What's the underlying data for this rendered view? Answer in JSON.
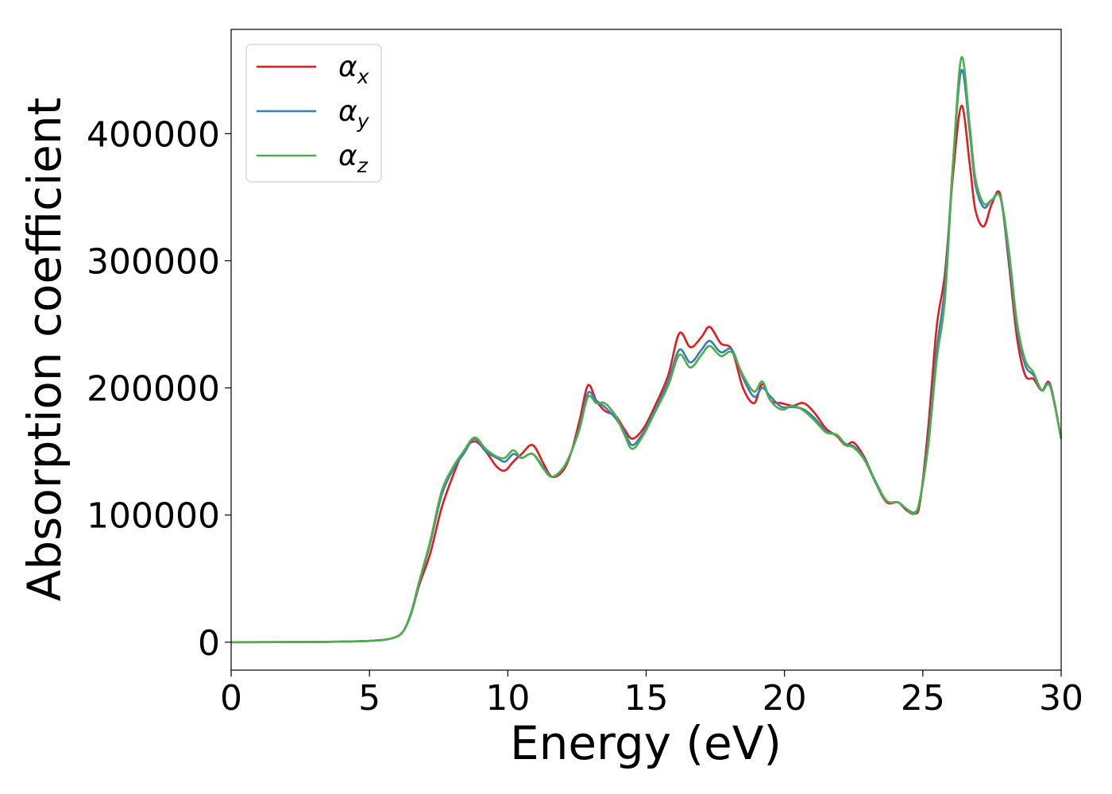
{
  "chart_data": {
    "type": "line",
    "title": "",
    "xlabel": "Energy (eV)",
    "ylabel": "Absorption coefficient",
    "xlim": [
      0,
      30
    ],
    "ylim": [
      -22000,
      482000
    ],
    "xticks": [
      0,
      5,
      10,
      15,
      20,
      25,
      30
    ],
    "yticks": [
      0,
      100000,
      200000,
      300000,
      400000
    ],
    "grid": false,
    "legend": {
      "position": "top-left",
      "entries": [
        {
          "symbol": "α",
          "subscript": "x",
          "color": "#e41a1c"
        },
        {
          "symbol": "α",
          "subscript": "y",
          "color": "#377eb8"
        },
        {
          "symbol": "α",
          "subscript": "z",
          "color": "#4daf4a"
        }
      ]
    },
    "series": [
      {
        "name": "αx",
        "color": "#e41a1c",
        "x": [
          0,
          3,
          5,
          5.8,
          6.2,
          6.5,
          6.8,
          7.2,
          7.6,
          8.0,
          8.4,
          8.8,
          9.2,
          9.6,
          9.9,
          10.2,
          10.5,
          10.9,
          11.3,
          11.6,
          12.0,
          12.3,
          12.6,
          12.9,
          13.2,
          13.5,
          13.9,
          14.2,
          14.5,
          14.9,
          15.3,
          15.8,
          16.2,
          16.6,
          17.0,
          17.3,
          17.7,
          18.1,
          18.5,
          18.9,
          19.2,
          19.5,
          19.9,
          20.3,
          20.7,
          21.1,
          21.5,
          21.9,
          22.2,
          22.5,
          22.9,
          23.3,
          23.7,
          24.1,
          24.4,
          24.7,
          24.9,
          25.2,
          25.5,
          25.8,
          26.1,
          26.4,
          26.7,
          26.9,
          27.2,
          27.5,
          27.8,
          28.1,
          28.4,
          28.7,
          29.0,
          29.3,
          29.6,
          30.0
        ],
        "y": [
          0,
          200,
          1000,
          3000,
          8000,
          22000,
          45000,
          70000,
          105000,
          130000,
          150000,
          158000,
          150000,
          138000,
          135000,
          142000,
          148000,
          155000,
          140000,
          130000,
          135000,
          150000,
          175000,
          202000,
          190000,
          182000,
          178000,
          168000,
          160000,
          168000,
          185000,
          210000,
          243000,
          232000,
          240000,
          248000,
          235000,
          230000,
          200000,
          188000,
          203000,
          190000,
          188000,
          186000,
          188000,
          180000,
          168000,
          162000,
          155000,
          157000,
          145000,
          125000,
          110000,
          110000,
          104000,
          101000,
          110000,
          170000,
          248000,
          290000,
          370000,
          422000,
          375000,
          340000,
          327000,
          345000,
          352000,
          300000,
          240000,
          210000,
          207000,
          198000,
          203000,
          160000
        ]
      },
      {
        "name": "αy",
        "color": "#377eb8",
        "x": [
          0,
          3,
          5,
          5.8,
          6.2,
          6.5,
          6.8,
          7.2,
          7.6,
          8.0,
          8.4,
          8.8,
          9.2,
          9.6,
          9.9,
          10.2,
          10.5,
          10.9,
          11.3,
          11.6,
          12.0,
          12.3,
          12.6,
          12.9,
          13.2,
          13.5,
          13.9,
          14.2,
          14.5,
          14.9,
          15.3,
          15.8,
          16.2,
          16.6,
          17.0,
          17.3,
          17.7,
          18.1,
          18.5,
          18.9,
          19.2,
          19.5,
          19.9,
          20.3,
          20.7,
          21.1,
          21.5,
          21.9,
          22.2,
          22.5,
          22.9,
          23.3,
          23.7,
          24.1,
          24.4,
          24.7,
          24.9,
          25.2,
          25.5,
          25.8,
          26.1,
          26.4,
          26.7,
          26.9,
          27.2,
          27.5,
          27.8,
          28.1,
          28.4,
          28.7,
          29.0,
          29.3,
          29.6,
          30.0
        ],
        "y": [
          0,
          200,
          1000,
          3000,
          8000,
          22000,
          47000,
          78000,
          115000,
          135000,
          148000,
          160000,
          150000,
          145000,
          142000,
          148000,
          145000,
          148000,
          137000,
          130000,
          137000,
          150000,
          170000,
          196000,
          190000,
          185000,
          176000,
          166000,
          155000,
          165000,
          182000,
          205000,
          230000,
          220000,
          230000,
          237000,
          228000,
          230000,
          208000,
          193000,
          200000,
          193000,
          185000,
          185000,
          183000,
          176000,
          166000,
          163000,
          156000,
          154000,
          144000,
          126000,
          111000,
          110000,
          105000,
          102000,
          112000,
          160000,
          230000,
          280000,
          380000,
          450000,
          400000,
          360000,
          342000,
          348000,
          350000,
          305000,
          248000,
          218000,
          210000,
          198000,
          202000,
          160000
        ]
      },
      {
        "name": "αz",
        "color": "#4daf4a",
        "x": [
          0,
          3,
          5,
          5.8,
          6.2,
          6.5,
          6.8,
          7.2,
          7.6,
          8.0,
          8.4,
          8.8,
          9.2,
          9.6,
          9.9,
          10.2,
          10.5,
          10.9,
          11.3,
          11.6,
          12.0,
          12.3,
          12.6,
          12.9,
          13.2,
          13.5,
          13.9,
          14.2,
          14.5,
          14.9,
          15.3,
          15.8,
          16.2,
          16.6,
          17.0,
          17.3,
          17.7,
          18.1,
          18.5,
          18.9,
          19.2,
          19.5,
          19.9,
          20.3,
          20.7,
          21.1,
          21.5,
          21.9,
          22.2,
          22.5,
          22.9,
          23.3,
          23.7,
          24.1,
          24.4,
          24.7,
          24.9,
          25.2,
          25.5,
          25.8,
          26.1,
          26.4,
          26.7,
          26.9,
          27.2,
          27.5,
          27.8,
          28.1,
          28.4,
          28.7,
          29.0,
          29.3,
          29.6,
          30.0
        ],
        "y": [
          0,
          200,
          1000,
          3000,
          8000,
          23000,
          48000,
          80000,
          118000,
          137000,
          150000,
          161000,
          152000,
          146000,
          145000,
          151000,
          145000,
          148000,
          136000,
          130000,
          137000,
          150000,
          168000,
          193000,
          188000,
          188000,
          178000,
          164000,
          152000,
          163000,
          180000,
          202000,
          226000,
          216000,
          226000,
          233000,
          225000,
          228000,
          210000,
          197000,
          205000,
          190000,
          183000,
          186000,
          182000,
          174000,
          165000,
          163000,
          155000,
          153000,
          143000,
          125000,
          111000,
          110000,
          105000,
          101000,
          113000,
          155000,
          222000,
          270000,
          380000,
          460000,
          405000,
          365000,
          345000,
          348000,
          350000,
          310000,
          252000,
          222000,
          212000,
          198000,
          201000,
          160000
        ]
      }
    ]
  }
}
